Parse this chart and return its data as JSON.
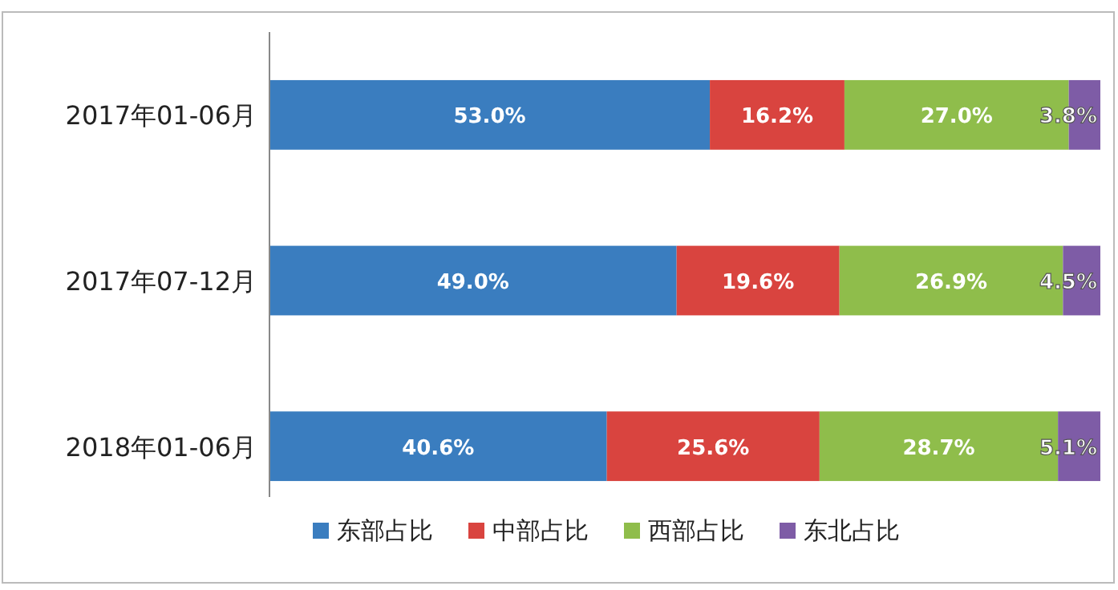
{
  "chart_data": {
    "type": "bar",
    "orientation": "horizontal",
    "stacked": true,
    "legend": "bottom",
    "categories": [
      "2017年01-06月",
      "2017年07-12月",
      "2018年01-06月"
    ],
    "series": [
      {
        "name": "东部占比",
        "color": "#3a7dbf",
        "values": [
          53.0,
          49.0,
          40.6
        ],
        "value_labels": [
          "53.0%",
          "49.0%",
          "40.6%"
        ]
      },
      {
        "name": "中部占比",
        "color": "#d9443f",
        "values": [
          16.2,
          19.6,
          25.6
        ],
        "value_labels": [
          "16.2%",
          "19.6%",
          "25.6%"
        ]
      },
      {
        "name": "西部占比",
        "color": "#8fbd4b",
        "values": [
          27.0,
          26.9,
          28.7
        ],
        "value_labels": [
          "27.0%",
          "26.9%",
          "28.7%"
        ]
      },
      {
        "name": "东北占比",
        "color": "#7e5ca6",
        "values": [
          3.8,
          4.5,
          5.1
        ],
        "value_labels": [
          "3.8%",
          "4.5%",
          "5.1%"
        ]
      }
    ]
  }
}
